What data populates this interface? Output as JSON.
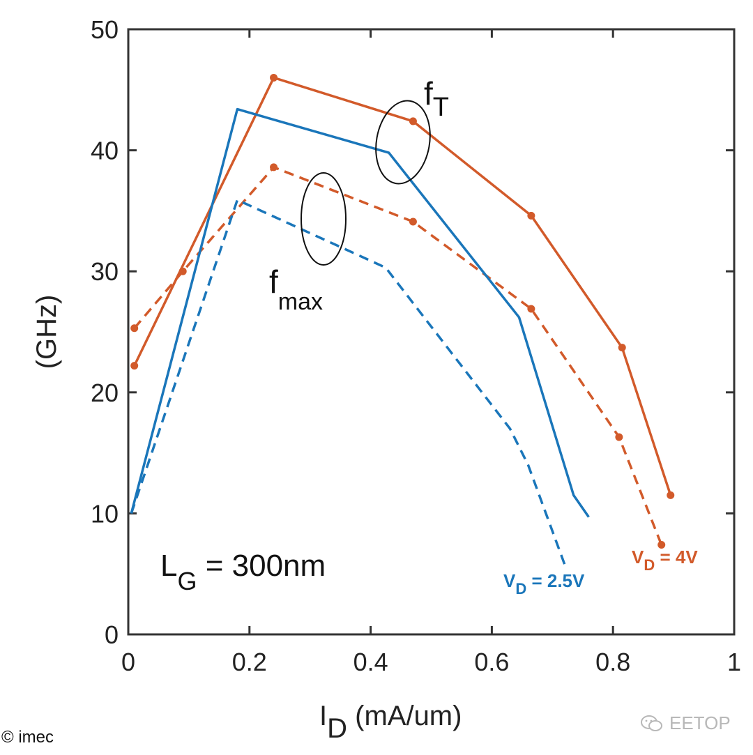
{
  "chart_data": {
    "type": "line",
    "xlabel": {
      "main": "I",
      "sub": "D",
      "tail": " (mA/um)"
    },
    "ylabel": "(GHz)",
    "xlim": [
      0,
      1
    ],
    "ylim": [
      0,
      50
    ],
    "xticks": [
      0,
      0.2,
      0.4,
      0.6,
      0.8,
      1
    ],
    "xtick_labels": [
      "0",
      "0.2",
      "0.4",
      "0.6",
      "0.8",
      "1"
    ],
    "yticks": [
      0,
      10,
      20,
      30,
      40,
      50
    ],
    "ytick_labels": [
      "0",
      "10",
      "20",
      "30",
      "40",
      "50"
    ],
    "grid": false,
    "series": [
      {
        "name": "fT, VD = 4V",
        "color": "#d25a2a",
        "dash": false,
        "markers": true,
        "x": [
          0.01,
          0.24,
          0.47,
          0.665,
          0.815,
          0.895
        ],
        "y": [
          22.2,
          46.0,
          42.4,
          34.6,
          23.7,
          11.5
        ]
      },
      {
        "name": "fmax, VD = 4V",
        "color": "#d25a2a",
        "dash": true,
        "markers": true,
        "x": [
          0.01,
          0.09,
          0.24,
          0.47,
          0.665,
          0.81,
          0.88
        ],
        "y": [
          25.3,
          30.0,
          38.6,
          34.1,
          26.9,
          16.3,
          7.4
        ]
      },
      {
        "name": "fT, VD = 2.5V",
        "color": "#1a76ba",
        "dash": false,
        "markers": false,
        "x": [
          0.005,
          0.18,
          0.43,
          0.645,
          0.735,
          0.76
        ],
        "y": [
          10.0,
          43.4,
          39.8,
          26.2,
          11.5,
          9.7
        ]
      },
      {
        "name": "fmax, VD = 2.5V",
        "color": "#1a76ba",
        "dash": true,
        "markers": false,
        "x": [
          0.005,
          0.18,
          0.425,
          0.63,
          0.66,
          0.72
        ],
        "y": [
          10.0,
          35.9,
          30.3,
          17.0,
          14.0,
          5.8
        ]
      }
    ],
    "annotations": {
      "fT": {
        "main": "f",
        "sub": "T"
      },
      "fmax": {
        "main": "f",
        "sub": "max"
      },
      "lg": {
        "main": "L",
        "sub": "G",
        "tail": " = 300nm"
      },
      "vd_blue": {
        "main": "V",
        "sub": "D",
        "tail": " = 2.5V",
        "color": "#1a76ba"
      },
      "vd_orange": {
        "main": "V",
        "sub": "D",
        "tail": " = 4V",
        "color": "#d25a2a"
      }
    }
  },
  "credit": "© imec",
  "watermark": "EETOP"
}
